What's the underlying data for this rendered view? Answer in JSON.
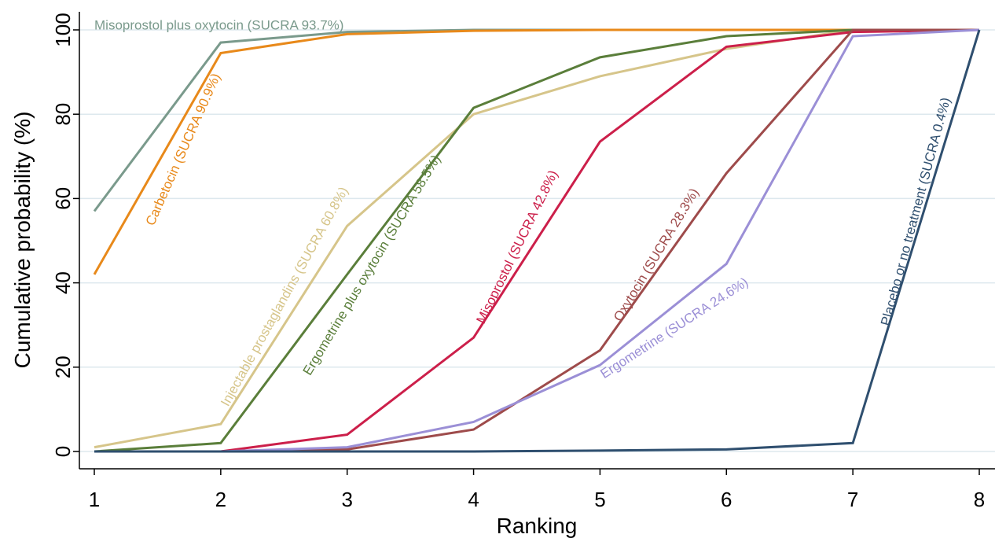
{
  "chart_data": {
    "type": "line",
    "title": "",
    "xlabel": "Ranking",
    "ylabel": "Cumulative probability (%)",
    "x": [
      1,
      2,
      3,
      4,
      5,
      6,
      7,
      8
    ],
    "xlim": [
      1,
      8
    ],
    "ylim": [
      0,
      100
    ],
    "y_ticks": [
      0,
      20,
      40,
      60,
      80,
      100
    ],
    "x_ticks": [
      1,
      2,
      3,
      4,
      5,
      6,
      7,
      8
    ],
    "grid": true,
    "legend": "none",
    "series": [
      {
        "name": "Misoprostol plus oxytocin",
        "label": "Misoprostol plus oxytocin (SUCRA 93.7%)",
        "color": "#7a9a8c",
        "values": [
          57,
          97,
          99.5,
          100,
          100,
          100,
          100,
          100
        ]
      },
      {
        "name": "Carbetocin",
        "label": "Carbetocin  (SUCRA 90.9%)",
        "color": "#e8891a",
        "values": [
          42,
          94.5,
          99,
          99.8,
          100,
          100,
          100,
          100
        ]
      },
      {
        "name": "Injectable prostaglandins",
        "label": "Injectable prostaglandins (SUCRA 60.8%)",
        "color": "#d6c58a",
        "values": [
          1,
          6.5,
          53.5,
          80,
          89,
          95.5,
          100,
          100
        ]
      },
      {
        "name": "Ergometrine plus oxytocin",
        "label": "Ergometrine plus oxytocin (SUCRA 58.5%)",
        "color": "#5a7e3a",
        "values": [
          0,
          2,
          42,
          81.5,
          93.5,
          98.5,
          100,
          100
        ]
      },
      {
        "name": "Misoprostol",
        "label": "Misoprostol (SUCRA 42.8%)",
        "color": "#cc1f4a",
        "values": [
          0,
          0,
          4,
          27,
          73.5,
          96,
          99.5,
          100
        ]
      },
      {
        "name": "Oxytocin",
        "label": "Oxytocin (SUCRA 28.3%)",
        "color": "#9e4b4b",
        "values": [
          0,
          0,
          0.5,
          5.2,
          24,
          66,
          100,
          100
        ]
      },
      {
        "name": "Ergometrine",
        "label": "Ergometrine (SUCRA 24.6%)",
        "color": "#9b8fd6",
        "values": [
          0,
          0,
          1,
          7,
          20.5,
          44.5,
          98.5,
          100
        ]
      },
      {
        "name": "Placebo or no treatment",
        "label": "Placebo or no treatment (SUCRA 0.4%)",
        "color": "#2f4f6f",
        "values": [
          0,
          0,
          0,
          0,
          0.2,
          0.5,
          2,
          100
        ]
      }
    ]
  }
}
